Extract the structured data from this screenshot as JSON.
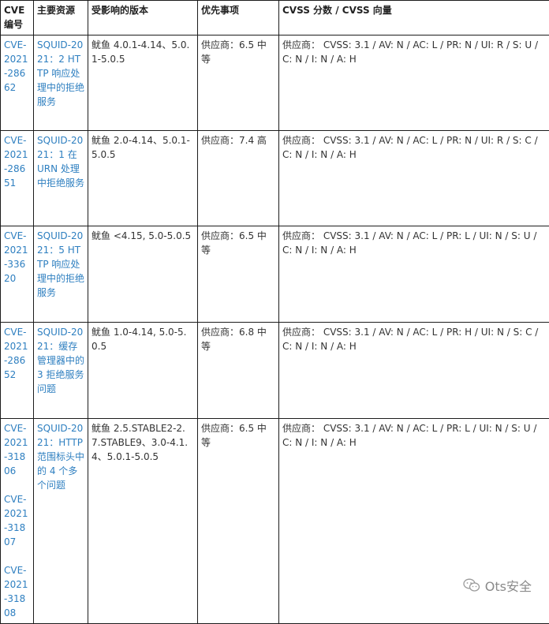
{
  "headers": [
    "CVE 编号",
    "主要资源",
    "受影响的版本",
    "优先事项",
    "CVSS 分数 / CVSS 向量"
  ],
  "rows": [
    {
      "cves": [
        "CVE-2021-28662"
      ],
      "resource": "SQUID-2021：2 HTTP 响应处理中的拒绝服务",
      "versions": "鱿鱼 4.0.1-4.14、5.0.1-5.0.5",
      "priority": "供应商：6.5 中等",
      "cvss": "供应商： CVSS: 3.1 / AV: N / AC: L / PR: N / UI: R / S: U / C: N / I: N / A: H"
    },
    {
      "cves": [
        "CVE-2021-28651"
      ],
      "resource": "SQUID-2021：1 在 URN 处理中拒绝服务",
      "versions": "鱿鱼 2.0-4.14、5.0.1-5.0.5",
      "priority": "供应商：7.4 高",
      "cvss": "供应商： CVSS: 3.1 / AV: N / AC: L / PR: N / UI: R / S: C / C: N / I: N / A: H"
    },
    {
      "cves": [
        "CVE-2021-33620"
      ],
      "resource": "SQUID-2021：5 HTTP 响应处理中的拒绝服务",
      "versions": "鱿鱼 <4.15, 5.0-5.0.5",
      "priority": "供应商：6.5 中等",
      "cvss": "供应商： CVSS: 3.1 / AV: N / AC: L / PR: L / UI: N / S: U / C: N / I: N / A: H"
    },
    {
      "cves": [
        "CVE-2021-28652"
      ],
      "resource": "SQUID-2021：缓存管理器中的 3 拒绝服务问题",
      "versions": "鱿鱼 1.0-4.14, 5.0-5.0.5",
      "priority": "供应商：6.8 中等",
      "cvss": "供应商： CVSS: 3.1 / AV: N / AC: L / PR: H / UI: N / S: C / C: N / I: N / A: H"
    },
    {
      "cves": [
        "CVE-2021-31806",
        "CVE-2021-31807",
        "CVE-2021-31808"
      ],
      "resource": "SQUID-2021：HTTP 范围标头中的 4 个多个问题",
      "versions": "鱿鱼 2.5.STABLE2-2.7.STABLE9、3.0-4.1.4、5.0.1-5.0.5",
      "priority": "供应商：6.5 中等",
      "cvss": "供应商： CVSS: 3.1 / AV: N / AC: L / PR: L / UI: N / S: U / C: N / I: N / A: H"
    }
  ],
  "watermark": "Ots安全",
  "colors": {
    "link": "#2e7fc0",
    "border": "#1c1c1c",
    "text": "#333333"
  }
}
